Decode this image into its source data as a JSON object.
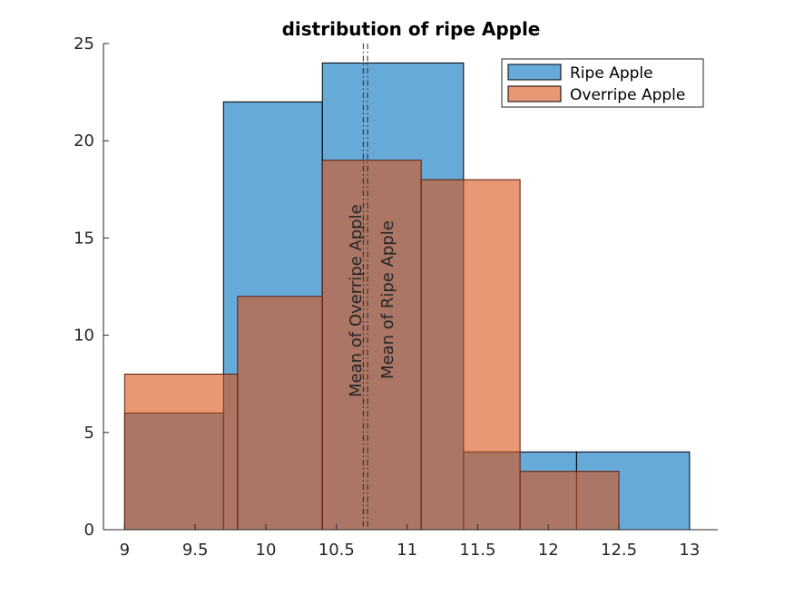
{
  "chart_data": {
    "type": "bar",
    "title": "distribution of ripe Apple",
    "xlabel": "",
    "ylabel": "",
    "xlim": [
      8.85,
      13.2
    ],
    "ylim": [
      0,
      25
    ],
    "xticks": [
      9,
      9.5,
      10,
      10.5,
      11,
      11.5,
      12,
      12.5,
      13
    ],
    "xtick_labels": [
      "9",
      "9.5",
      "10",
      "10.5",
      "11",
      "11.5",
      "12",
      "12.5",
      "13"
    ],
    "yticks": [
      0,
      5,
      10,
      15,
      20,
      25
    ],
    "ytick_labels": [
      "0",
      "5",
      "10",
      "15",
      "20",
      "25"
    ],
    "legend_position": "top-right",
    "series": [
      {
        "name": "Ripe Apple",
        "color": "#0072BD",
        "bins": [
          {
            "x0": 9.0,
            "x1": 9.7,
            "count": 6
          },
          {
            "x0": 9.7,
            "x1": 10.4,
            "count": 22
          },
          {
            "x0": 10.4,
            "x1": 11.4,
            "count": 24
          },
          {
            "x0": 11.4,
            "x1": 12.2,
            "count": 4
          },
          {
            "x0": 12.2,
            "x1": 13.0,
            "count": 4
          }
        ]
      },
      {
        "name": "Overripe Apple",
        "color": "#D95319",
        "bins": [
          {
            "x0": 9.0,
            "x1": 9.8,
            "count": 8
          },
          {
            "x0": 9.8,
            "x1": 10.4,
            "count": 12
          },
          {
            "x0": 10.4,
            "x1": 11.1,
            "count": 19
          },
          {
            "x0": 11.1,
            "x1": 11.8,
            "count": 18
          },
          {
            "x0": 11.8,
            "x1": 12.5,
            "count": 3
          }
        ]
      }
    ],
    "mean_lines": [
      {
        "label": "Mean of Overripe Apple",
        "x": 10.69
      },
      {
        "label": "Mean of Ripe Apple",
        "x": 10.72
      }
    ]
  }
}
